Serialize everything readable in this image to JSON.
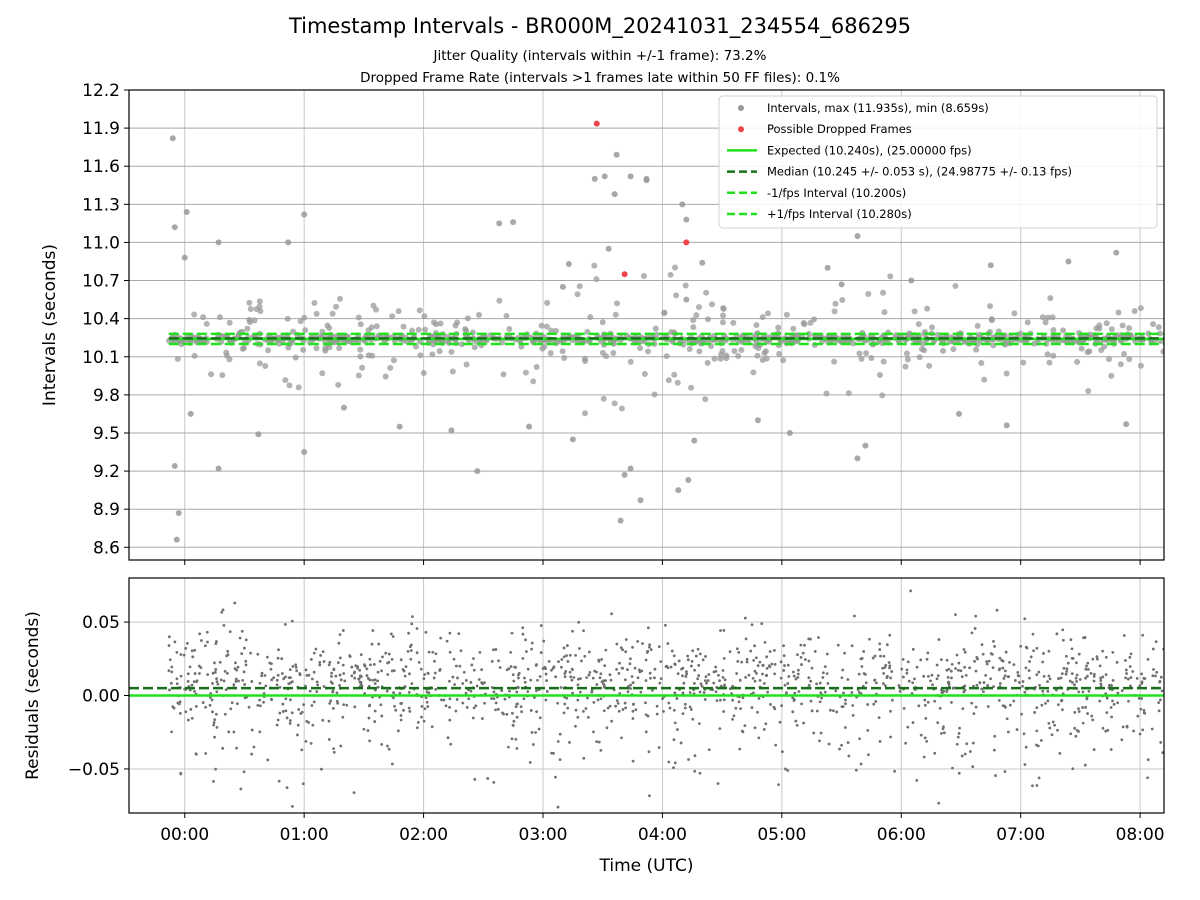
{
  "chart_data": [
    {
      "type": "scatter",
      "title": "Timestamp Intervals - BR000M_20241031_234554_686295",
      "subtitle_lines": [
        "Jitter Quality (intervals within +/-1 frame): 73.2%",
        "Dropped Frame Rate (intervals >1 frames late within 50 FF files): 0.1%"
      ],
      "xlabel": "",
      "ylabel": "Intervals (seconds)",
      "x_range_utc": [
        "-00:28",
        "08:12"
      ],
      "ylim": [
        8.5,
        12.2
      ],
      "yticks": [
        "8.6",
        "8.9",
        "9.2",
        "9.5",
        "9.8",
        "10.1",
        "10.4",
        "10.7",
        "11.0",
        "11.3",
        "11.6",
        "11.9",
        "12.2"
      ],
      "grid": true,
      "legend_position": "top-right",
      "legend": [
        "Intervals, max (11.935s), min (8.659s)",
        "Possible Dropped Frames",
        "Expected (10.240s), (25.00000 fps)",
        "Median (10.245 +/- 0.053 s), (24.98775 +/- 0.13 fps)",
        "-1/fps Interval (10.200s)",
        "+1/fps Interval (10.280s)"
      ],
      "reference_lines": {
        "expected": 10.24,
        "median": 10.245,
        "minus_1_fps": 10.2,
        "plus_1_fps": 10.28
      },
      "colors": {
        "intervals": "#999999",
        "dropped": "#f0464b",
        "expected": "#22e01e",
        "median": "#1a6e1a",
        "bounds": "#22e01e"
      },
      "series": [
        {
          "name": "Possible Dropped Frames",
          "x": [
            "03:27",
            "03:41",
            "04:12"
          ],
          "y": [
            11.935,
            10.75,
            11.0
          ]
        },
        {
          "name": "Intervals, max (11.935s), min (8.659s)",
          "x": [
            "23:54",
            "23:55",
            "23:56",
            "23:55",
            "23:57",
            "00:17",
            "00:37",
            "01:00",
            "01:20",
            "01:48",
            "02:14",
            "02:27",
            "02:53",
            "03:15",
            "03:26",
            "03:31",
            "03:33",
            "03:37",
            "03:39",
            "03:41",
            "03:44",
            "03:49",
            "04:08",
            "04:13",
            "04:16",
            "04:48",
            "05:04",
            "05:38",
            "05:42",
            "06:29",
            "06:53",
            "07:24",
            "07:48",
            "07:53",
            "05:23",
            "05:38",
            "00:01",
            "01:00",
            "00:17",
            "00:52",
            "02:45",
            "03:13",
            "03:44",
            "03:52",
            "05:30",
            "06:05",
            "06:45",
            "04:20",
            "02:38",
            "04:10",
            "04:12",
            "04:12",
            "03:36",
            "00:03",
            "03:10",
            "03:52",
            "00:00"
          ],
          "y": [
            11.82,
            11.12,
            8.66,
            9.24,
            8.87,
            9.22,
            9.49,
            9.35,
            9.7,
            9.55,
            9.52,
            9.2,
            9.55,
            9.45,
            11.5,
            11.52,
            10.95,
            11.69,
            8.81,
            9.17,
            9.22,
            8.97,
            9.05,
            9.13,
            9.44,
            9.6,
            9.5,
            9.3,
            9.4,
            9.65,
            9.56,
            10.85,
            10.92,
            9.57,
            10.8,
            11.05,
            11.24,
            11.22,
            11.0,
            11.0,
            11.16,
            10.83,
            11.52,
            11.49,
            10.67,
            10.7,
            10.82,
            10.84,
            11.15,
            11.3,
            11.18,
            10.55,
            11.38,
            9.65,
            10.65,
            11.5,
            10.88
          ]
        }
      ]
    },
    {
      "type": "scatter",
      "title": "",
      "xlabel": "Time (UTC)",
      "ylabel": "Residuals (seconds)",
      "xticks": [
        "00:00",
        "01:00",
        "02:00",
        "03:00",
        "04:00",
        "05:00",
        "06:00",
        "07:00",
        "08:00"
      ],
      "ylim": [
        -0.08,
        0.08
      ],
      "yticks": [
        "−0.05",
        "0.00",
        "0.05"
      ],
      "grid": true,
      "reference_lines": {
        "median_residual": 0.005,
        "expected_residual": 0.0
      },
      "colors": {
        "points": "#707070",
        "expected": "#22e01e",
        "median": "#1a6e1a"
      }
    }
  ]
}
